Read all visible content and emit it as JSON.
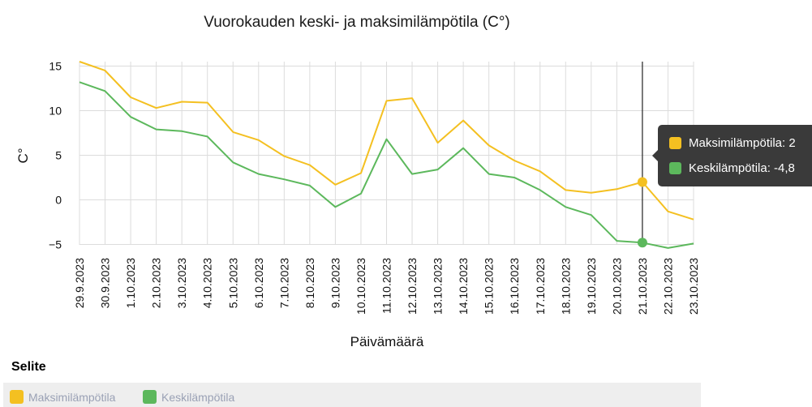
{
  "colors": {
    "max": "#f4c021",
    "avg": "#5cb85c"
  },
  "chart_data": {
    "type": "line",
    "title": "Vuorokauden keski- ja maksimilämpötila (C°)",
    "xlabel": "Päivämäärä",
    "ylabel": "C°",
    "ylim": [
      -5,
      15
    ],
    "yticks": [
      15,
      10,
      5,
      0,
      -5
    ],
    "grid": true,
    "categories": [
      "29.9.2023",
      "30.9.2023",
      "1.10.2023",
      "2.10.2023",
      "3.10.2023",
      "4.10.2023",
      "5.10.2023",
      "6.10.2023",
      "7.10.2023",
      "8.10.2023",
      "9.10.2023",
      "10.10.2023",
      "11.10.2023",
      "12.10.2023",
      "13.10.2023",
      "14.10.2023",
      "15.10.2023",
      "16.10.2023",
      "17.10.2023",
      "18.10.2023",
      "19.10.2023",
      "20.10.2023",
      "21.10.2023",
      "22.10.2023",
      "23.10.2023"
    ],
    "series": [
      {
        "name": "Maksimilämpötila",
        "values": [
          15.5,
          14.5,
          11.5,
          10.3,
          11.0,
          10.9,
          7.6,
          6.7,
          4.9,
          3.9,
          1.7,
          3.0,
          11.1,
          11.4,
          6.4,
          8.9,
          6.1,
          4.4,
          3.2,
          1.1,
          0.8,
          1.2,
          2.0,
          -1.3,
          -2.2
        ]
      },
      {
        "name": "Keskilämpötila",
        "values": [
          13.2,
          12.2,
          9.3,
          7.9,
          7.7,
          7.1,
          4.2,
          2.9,
          2.3,
          1.6,
          -0.8,
          0.7,
          6.8,
          2.9,
          3.4,
          5.8,
          2.9,
          2.5,
          1.1,
          -0.8,
          -1.7,
          -4.6,
          -4.8,
          -5.4,
          -4.9
        ]
      }
    ],
    "legend_position": "bottom-left"
  },
  "legend": {
    "title": "Selite",
    "items": [
      {
        "label": "Maksimilämpötila"
      },
      {
        "label": "Keskilämpötila"
      }
    ]
  },
  "tooltip": {
    "index": 22,
    "rows": [
      {
        "label": "Maksimilämpötila: 2"
      },
      {
        "label": "Keskilämpötila: -4,8"
      }
    ]
  }
}
